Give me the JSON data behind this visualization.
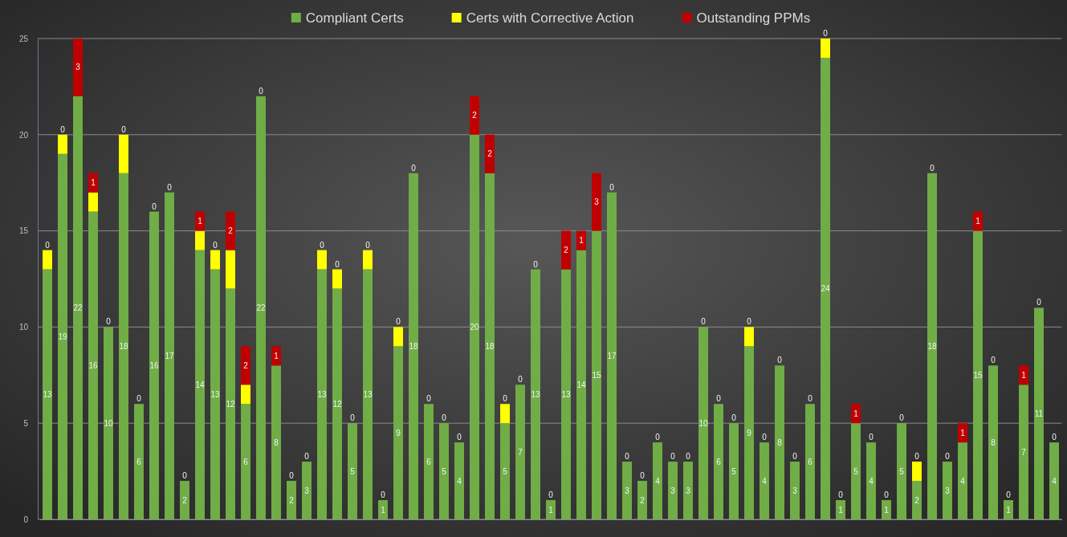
{
  "chart_data": {
    "type": "bar",
    "stacked": true,
    "categories": [
      null,
      null,
      null,
      null,
      null,
      null,
      null,
      null,
      null,
      null,
      null,
      null,
      null,
      null,
      null,
      null,
      null,
      null,
      null,
      null,
      null,
      null,
      null,
      null,
      null,
      null,
      null,
      null,
      null,
      null,
      null,
      null,
      null,
      null,
      null,
      null,
      null,
      null,
      null,
      null,
      null,
      null,
      null,
      null,
      null,
      null,
      null,
      null,
      null,
      null,
      null,
      null,
      null,
      null,
      null,
      null,
      null,
      null,
      null,
      null,
      null,
      null,
      null,
      null,
      null,
      null,
      null
    ],
    "series": [
      {
        "name": "Compliant Certs",
        "color": "#70ad47",
        "values": [
          13,
          19,
          22,
          16,
          10,
          18,
          6,
          16,
          17,
          2,
          14,
          13,
          12,
          6,
          22,
          8,
          2,
          3,
          13,
          12,
          5,
          13,
          1,
          9,
          18,
          6,
          5,
          4,
          20,
          18,
          5,
          7,
          13,
          1,
          13,
          14,
          15,
          17,
          3,
          2,
          4,
          3,
          3,
          10,
          6,
          5,
          9,
          4,
          8,
          3,
          6,
          24,
          1,
          5,
          4,
          1,
          5,
          2,
          18,
          3,
          4,
          15,
          8,
          1,
          7,
          11,
          4
        ],
        "value_labels": [
          "13",
          "19",
          "22",
          "16",
          "10",
          "18",
          "6",
          "16",
          "17",
          "2",
          "14",
          "13",
          "12",
          "6",
          "22",
          "8",
          "2",
          "3",
          "13",
          "12",
          "5",
          "13",
          "1",
          "9",
          "18",
          "6",
          "5",
          "4",
          "20",
          "18",
          "5",
          "7",
          "13",
          "1",
          "13",
          "14",
          "15",
          "17",
          "3",
          "2",
          "4",
          "3",
          "3",
          "10",
          "6",
          "5",
          "9",
          "4",
          "8",
          "3",
          "6",
          "24",
          "1",
          "5",
          "4",
          "1",
          "5",
          "2",
          "18",
          "3",
          "4",
          "15",
          "8",
          "1",
          "7",
          "11",
          "4"
        ]
      },
      {
        "name": "Certs with Corrective Action",
        "color": "#ffff00",
        "values": [
          1,
          1,
          0,
          1,
          0,
          2,
          0,
          0,
          0,
          0,
          1,
          1,
          2,
          1,
          0,
          0,
          0,
          0,
          1,
          1,
          0,
          1,
          0,
          1,
          0,
          0,
          0,
          0,
          0,
          0,
          1,
          0,
          0,
          0,
          0,
          0,
          0,
          0,
          0,
          0,
          0,
          0,
          0,
          0,
          0,
          0,
          1,
          0,
          0,
          0,
          0,
          1,
          0,
          0,
          0,
          0,
          0,
          1,
          0,
          0,
          0,
          0,
          0,
          0,
          0,
          0,
          0
        ]
      },
      {
        "name": "Outstanding PPMs",
        "color": "#c00000",
        "values": [
          0,
          0,
          3,
          1,
          0,
          0,
          0,
          0,
          0,
          0,
          1,
          0,
          2,
          2,
          0,
          1,
          0,
          0,
          0,
          0,
          0,
          0,
          0,
          0,
          0,
          0,
          0,
          0,
          2,
          2,
          0,
          0,
          0,
          0,
          2,
          1,
          3,
          0,
          0,
          0,
          0,
          0,
          0,
          0,
          0,
          0,
          0,
          0,
          0,
          0,
          0,
          0,
          0,
          1,
          0,
          0,
          0,
          0,
          0,
          0,
          1,
          1,
          0,
          0,
          1,
          0,
          0
        ],
        "value_labels": [
          "0",
          "0",
          "3",
          "1",
          "0",
          "0",
          "0",
          "0",
          "0",
          "0",
          "1",
          "0",
          "2",
          "2",
          "0",
          "1",
          "0",
          "0",
          "0",
          "0",
          "0",
          "0",
          "0",
          "0",
          "0",
          "0",
          "0",
          "0",
          "2",
          "2",
          "0",
          "0",
          "0",
          "0",
          "2",
          "1",
          "3",
          "0",
          "0",
          "0",
          "0",
          "0",
          "0",
          "0",
          "0",
          "0",
          "0",
          "0",
          "0",
          "0",
          "0",
          "0",
          "0",
          "1",
          "0",
          "0",
          "0",
          "0",
          "0",
          "0",
          "1",
          "1",
          "0",
          "0",
          "1",
          "0",
          "0"
        ]
      }
    ],
    "ylim": [
      0,
      25
    ],
    "yticks": [
      0,
      5,
      10,
      15,
      20,
      25
    ],
    "grid": "y",
    "legend": "top"
  }
}
